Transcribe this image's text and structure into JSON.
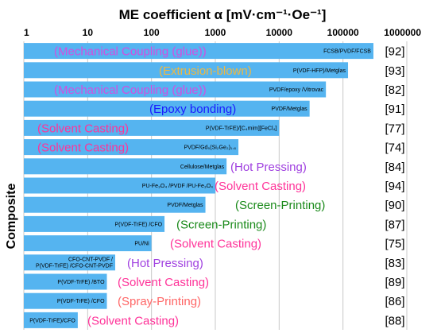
{
  "chart_data": {
    "type": "bar",
    "orientation": "horizontal",
    "title": "ME coefficient α [mV·cm⁻¹·Oe⁻¹]",
    "ylabel": "Composite",
    "xscale": "log",
    "xlim": [
      1,
      1000000
    ],
    "xticks": [
      "1",
      "10",
      "100",
      "1000",
      "10000",
      "100000",
      "1000000"
    ],
    "grid": "vertical",
    "bar_color": "#55b4f0",
    "bars": [
      {
        "composite": "FCSB/PVDF/FCSB",
        "value": 300000,
        "method": "(Mechanical Coupling (glue))",
        "method_color": "#d24fe0",
        "ref": "[92]"
      },
      {
        "composite": "P(VDF-HFP)/Metglas",
        "value": 120000,
        "method": "(Extrusion-blown)",
        "method_color": "#f0b840",
        "ref": "[93]"
      },
      {
        "composite": "PVDF/epoxy /Vitrovac",
        "value": 54000,
        "method": "(Mechanical Coupling (glue))",
        "method_color": "#d24fe0",
        "ref": "[82]"
      },
      {
        "composite": "PVDF/Metglas",
        "value": 30000,
        "method": "(Epoxy bonding)",
        "method_color": "#1a1aff",
        "ref": "[91]"
      },
      {
        "composite": "P(VDF-TrFE)/[C₄mim][FeCl₄]",
        "value": 10000,
        "method": "(Solvent Casting)",
        "method_color": "#ff3399",
        "ref": "[77]"
      },
      {
        "composite": "PVDF/Gd₅(Si₂Ge₂)₁.₆",
        "value": 2300,
        "method": "(Solvent Casting)",
        "method_color": "#ff3399",
        "ref": "[74]"
      },
      {
        "composite": "Cellulose/Metglas",
        "value": 1500,
        "method": "(Hot Pressing)",
        "method_color": "#a040e0",
        "ref": "[84]"
      },
      {
        "composite": "PU-Fe₃O₄ /PVDF /PU-Fe₃O₄",
        "value": 1000,
        "method": "(Solvent Casting)",
        "method_color": "#ff3399",
        "ref": "[94]"
      },
      {
        "composite": "PVDF/Metglas",
        "value": 700,
        "method": "(Screen-Printing)",
        "method_color": "#1a8a1a",
        "ref": "[90]"
      },
      {
        "composite": "P(VDF-TrFE) /CFO",
        "value": 160,
        "method": "(Screen-Printing)",
        "method_color": "#1a8a1a",
        "ref": "[87]"
      },
      {
        "composite": "PU/Ni",
        "value": 100,
        "method": "(Solvent Casting)",
        "method_color": "#ff3399",
        "ref": "[75]"
      },
      {
        "composite": "CFO-CNT-PVDF / P(VDF-TrFE) /CFO-CNT-PVDF",
        "composite_lines": [
          "CFO-CNT-PVDF /",
          "P(VDF-TrFE) /CFO-CNT-PVDF"
        ],
        "value": 27,
        "method": "(Hot Pressing)",
        "method_color": "#a040e0",
        "ref": "[83]"
      },
      {
        "composite": "P(VDF-TrFE) /BTO",
        "value": 20,
        "method": "(Solvent Casting)",
        "method_color": "#ff3399",
        "ref": "[89]"
      },
      {
        "composite": "P(VDF-TrFE) /CFO",
        "value": 20,
        "method": "(Spray-Printing)",
        "method_color": "#ff6666",
        "ref": "[86]"
      },
      {
        "composite": "P(VDF-TrFE)/CFO",
        "value": 7,
        "method": "(Solvent Casting)",
        "method_color": "#ff3399",
        "ref": "[88]"
      }
    ]
  }
}
